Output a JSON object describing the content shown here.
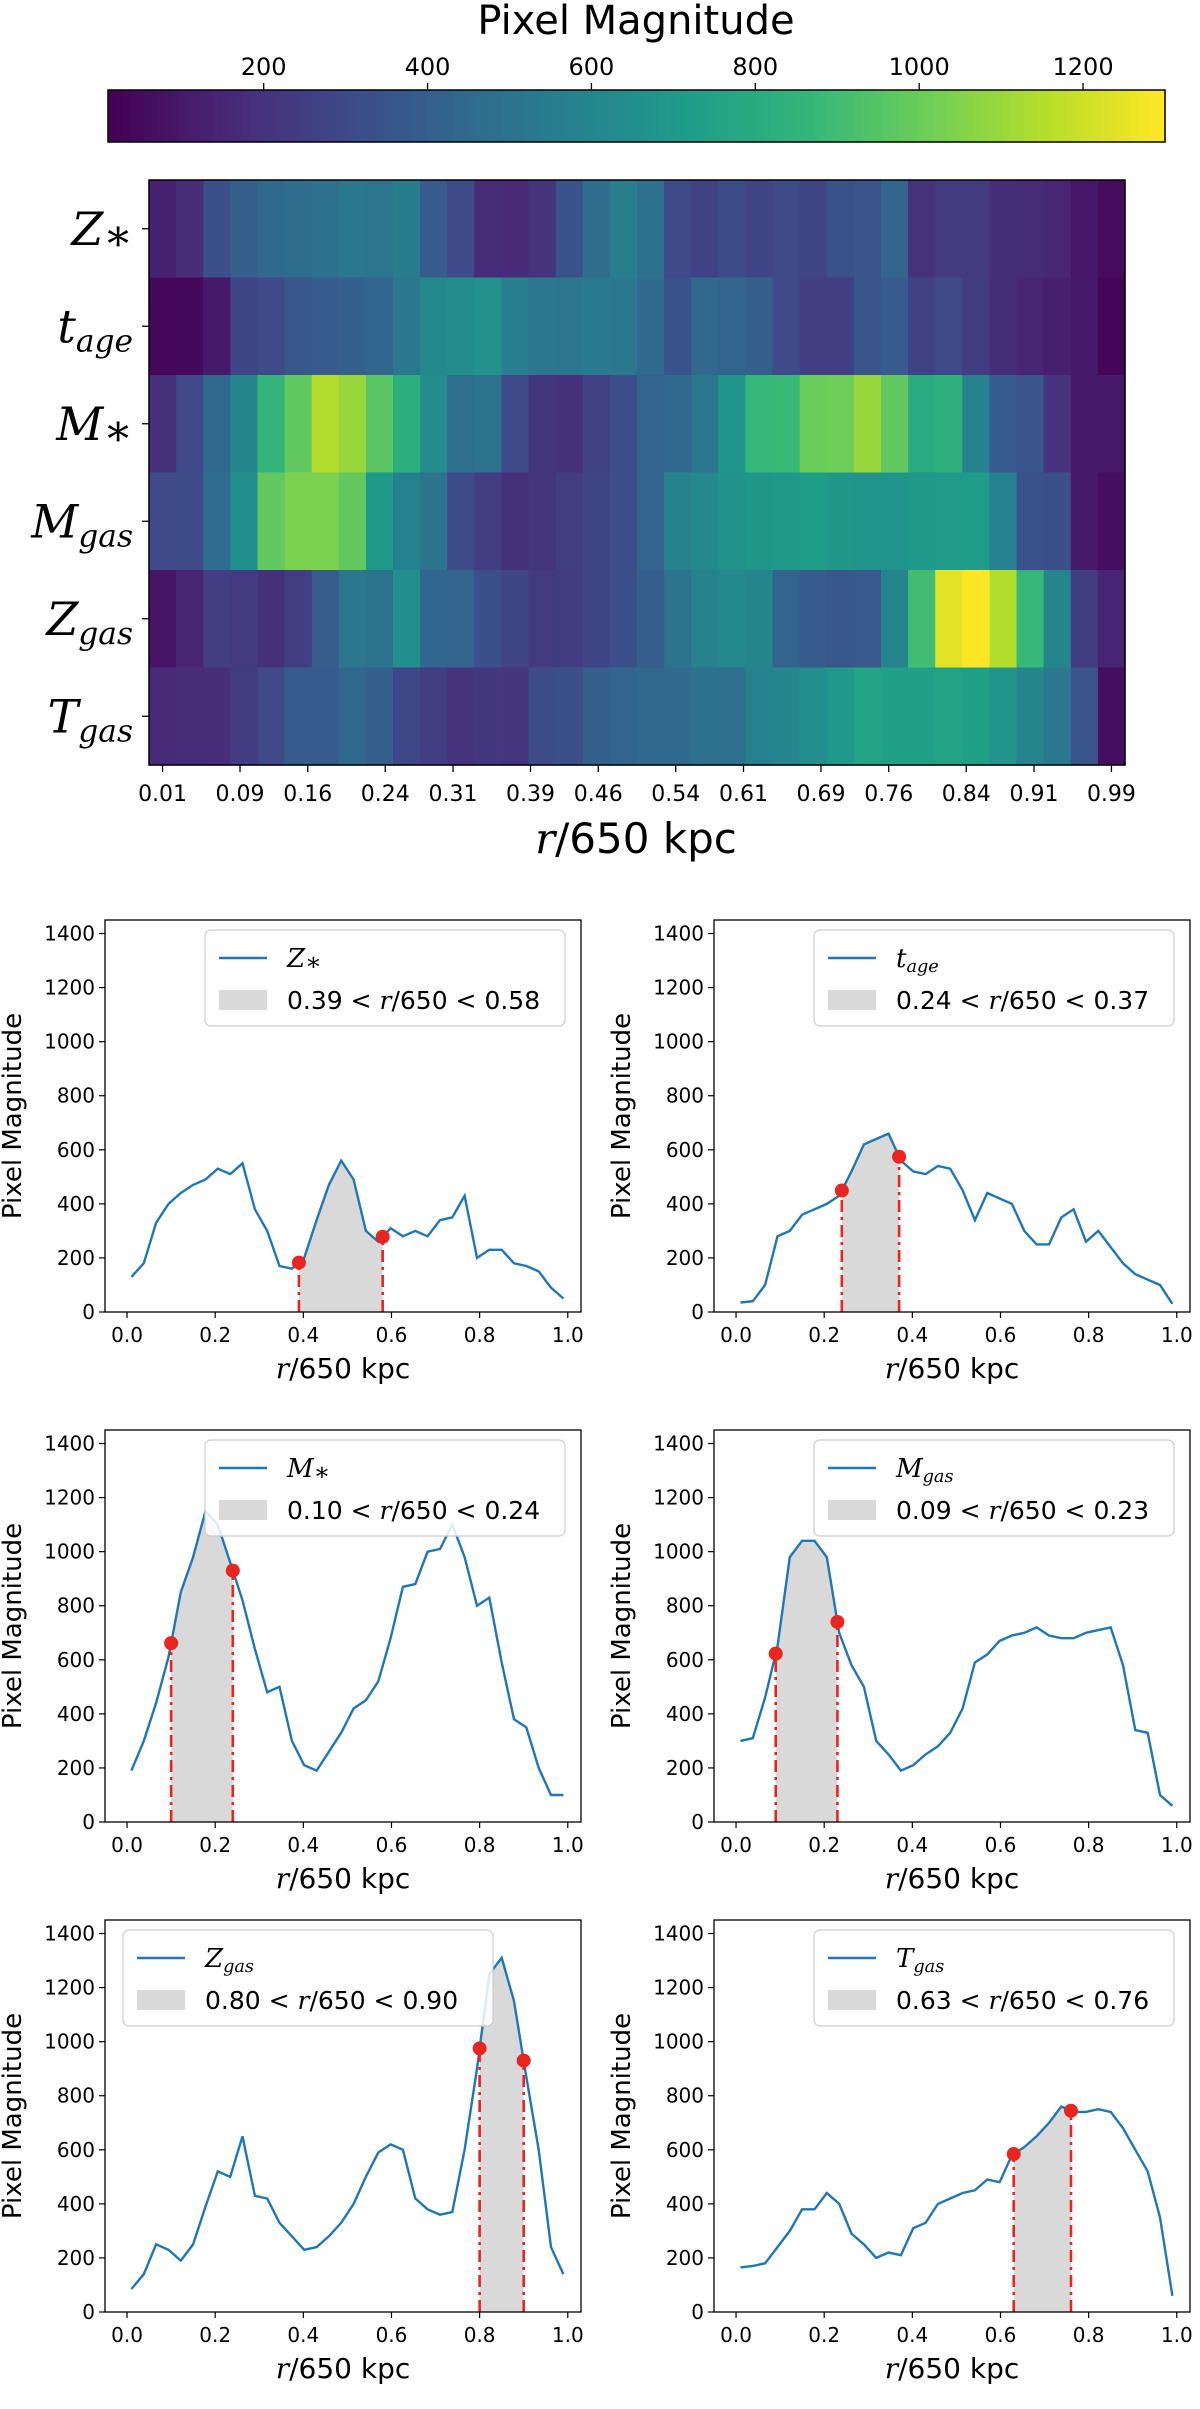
{
  "colors": {
    "viridis": [
      "#440154",
      "#482878",
      "#3e4989",
      "#31688e",
      "#26828e",
      "#1f9e89",
      "#35b779",
      "#6ece58",
      "#b5de2b",
      "#fde725"
    ],
    "line": "#1f77b4",
    "marker": "#e8251f",
    "span": "#d9d9d9"
  },
  "chart_data": [
    {
      "type": "heatmap",
      "colorbar": {
        "label": "Pixel Magnitude",
        "ticks": [
          "200",
          "400",
          "600",
          "800",
          "1000",
          "1200"
        ],
        "range": [
          10,
          1300
        ]
      },
      "rows": [
        {
          "sym": "Z",
          "sub": "∗"
        },
        {
          "sym": "t",
          "sub": "age"
        },
        {
          "sym": "M",
          "sub": "∗"
        },
        {
          "sym": "M",
          "sub": "gas"
        },
        {
          "sym": "Z",
          "sub": "gas"
        },
        {
          "sym": "T",
          "sub": "gas"
        }
      ],
      "xticks": [
        "0.01",
        "0.09",
        "0.16",
        "0.24",
        "0.31",
        "0.39",
        "0.46",
        "0.54",
        "0.61",
        "0.69",
        "0.76",
        "0.84",
        "0.91",
        "0.99"
      ],
      "xlabel": {
        "sym": "r",
        "text": "/650 kpc"
      },
      "values": [
        [
          130,
          180,
          330,
          400,
          440,
          470,
          490,
          530,
          510,
          550,
          380,
          300,
          170,
          160,
          200,
          340,
          470,
          560,
          490,
          300,
          260,
          310,
          280,
          300,
          280,
          340,
          350,
          430,
          200,
          230,
          230,
          180,
          170,
          150,
          90,
          50
        ],
        [
          35,
          40,
          100,
          280,
          300,
          360,
          380,
          400,
          430,
          520,
          620,
          640,
          660,
          560,
          520,
          510,
          540,
          530,
          450,
          340,
          440,
          420,
          400,
          300,
          250,
          250,
          350,
          380,
          260,
          300,
          240,
          180,
          140,
          120,
          100,
          30
        ],
        [
          190,
          300,
          440,
          610,
          850,
          980,
          1150,
          1100,
          960,
          820,
          640,
          480,
          500,
          300,
          210,
          190,
          260,
          330,
          420,
          450,
          520,
          680,
          870,
          880,
          1000,
          1010,
          1100,
          980,
          800,
          830,
          590,
          380,
          350,
          200,
          100,
          100
        ],
        [
          300,
          310,
          460,
          650,
          980,
          1040,
          1040,
          980,
          700,
          580,
          500,
          300,
          250,
          190,
          210,
          250,
          280,
          330,
          420,
          590,
          620,
          670,
          690,
          700,
          720,
          690,
          680,
          680,
          700,
          710,
          720,
          580,
          340,
          330,
          100,
          60
        ],
        [
          85,
          140,
          250,
          230,
          190,
          250,
          390,
          520,
          500,
          650,
          430,
          420,
          330,
          280,
          230,
          240,
          280,
          330,
          400,
          500,
          590,
          620,
          600,
          420,
          380,
          360,
          370,
          600,
          900,
          1250,
          1310,
          1150,
          870,
          600,
          240,
          140
        ],
        [
          165,
          170,
          180,
          240,
          300,
          380,
          380,
          440,
          400,
          290,
          250,
          200,
          220,
          210,
          310,
          330,
          400,
          420,
          440,
          450,
          490,
          480,
          580,
          610,
          650,
          700,
          760,
          740,
          740,
          750,
          740,
          680,
          600,
          520,
          350,
          60
        ]
      ]
    },
    {
      "type": "line",
      "series_index": 0,
      "legend": {
        "sym": "Z",
        "sub": "∗"
      },
      "span_label": "0.39 < r/650 < 0.58",
      "span": [
        0.39,
        0.58
      ],
      "ylabel": "Pixel Magnitude",
      "xlabel": {
        "sym": "r",
        "text": "/650 kpc"
      },
      "ylim": [
        0,
        1450
      ],
      "xlim": [
        -0.05,
        1.03
      ],
      "xticks": [
        "0.0",
        "0.2",
        "0.4",
        "0.6",
        "0.8",
        "1.0"
      ],
      "yticks": [
        "0",
        "200",
        "400",
        "600",
        "800",
        "1000",
        "1200",
        "1400"
      ]
    },
    {
      "type": "line",
      "series_index": 1,
      "legend": {
        "sym": "t",
        "sub": "age"
      },
      "span_label": "0.24 < r/650 < 0.37",
      "span": [
        0.24,
        0.37
      ],
      "ylabel": "Pixel Magnitude",
      "xlabel": {
        "sym": "r",
        "text": "/650 kpc"
      },
      "ylim": [
        0,
        1450
      ],
      "xlim": [
        -0.05,
        1.03
      ],
      "xticks": [
        "0.0",
        "0.2",
        "0.4",
        "0.6",
        "0.8",
        "1.0"
      ],
      "yticks": [
        "0",
        "200",
        "400",
        "600",
        "800",
        "1000",
        "1200",
        "1400"
      ]
    },
    {
      "type": "line",
      "series_index": 2,
      "legend": {
        "sym": "M",
        "sub": "∗"
      },
      "span_label": "0.10 < r/650 < 0.24",
      "span": [
        0.1,
        0.24
      ],
      "ylabel": "Pixel Magnitude",
      "xlabel": {
        "sym": "r",
        "text": "/650 kpc"
      },
      "ylim": [
        0,
        1450
      ],
      "xlim": [
        -0.05,
        1.03
      ],
      "xticks": [
        "0.0",
        "0.2",
        "0.4",
        "0.6",
        "0.8",
        "1.0"
      ],
      "yticks": [
        "0",
        "200",
        "400",
        "600",
        "800",
        "1000",
        "1200",
        "1400"
      ]
    },
    {
      "type": "line",
      "series_index": 3,
      "legend": {
        "sym": "M",
        "sub": "gas"
      },
      "span_label": "0.09 < r/650 < 0.23",
      "span": [
        0.09,
        0.23
      ],
      "ylabel": "Pixel Magnitude",
      "xlabel": {
        "sym": "r",
        "text": "/650 kpc"
      },
      "ylim": [
        0,
        1450
      ],
      "xlim": [
        -0.05,
        1.03
      ],
      "xticks": [
        "0.0",
        "0.2",
        "0.4",
        "0.6",
        "0.8",
        "1.0"
      ],
      "yticks": [
        "0",
        "200",
        "400",
        "600",
        "800",
        "1000",
        "1200",
        "1400"
      ]
    },
    {
      "type": "line",
      "series_index": 4,
      "legend": {
        "sym": "Z",
        "sub": "gas"
      },
      "span_label": "0.80 < r/650 < 0.90",
      "span": [
        0.8,
        0.9
      ],
      "ylabel": "Pixel Magnitude",
      "xlabel": {
        "sym": "r",
        "text": "/650 kpc"
      },
      "ylim": [
        0,
        1450
      ],
      "xlim": [
        -0.05,
        1.03
      ],
      "xticks": [
        "0.0",
        "0.2",
        "0.4",
        "0.6",
        "0.8",
        "1.0"
      ],
      "yticks": [
        "0",
        "200",
        "400",
        "600",
        "800",
        "1000",
        "1200",
        "1400"
      ]
    },
    {
      "type": "line",
      "series_index": 5,
      "legend": {
        "sym": "T",
        "sub": "gas"
      },
      "span_label": "0.63 < r/650 < 0.76",
      "span": [
        0.63,
        0.76
      ],
      "ylabel": "Pixel Magnitude",
      "xlabel": {
        "sym": "r",
        "text": "/650 kpc"
      },
      "ylim": [
        0,
        1450
      ],
      "xlim": [
        -0.05,
        1.03
      ],
      "xticks": [
        "0.0",
        "0.2",
        "0.4",
        "0.6",
        "0.8",
        "1.0"
      ],
      "yticks": [
        "0",
        "200",
        "400",
        "600",
        "800",
        "1000",
        "1200",
        "1400"
      ]
    }
  ]
}
